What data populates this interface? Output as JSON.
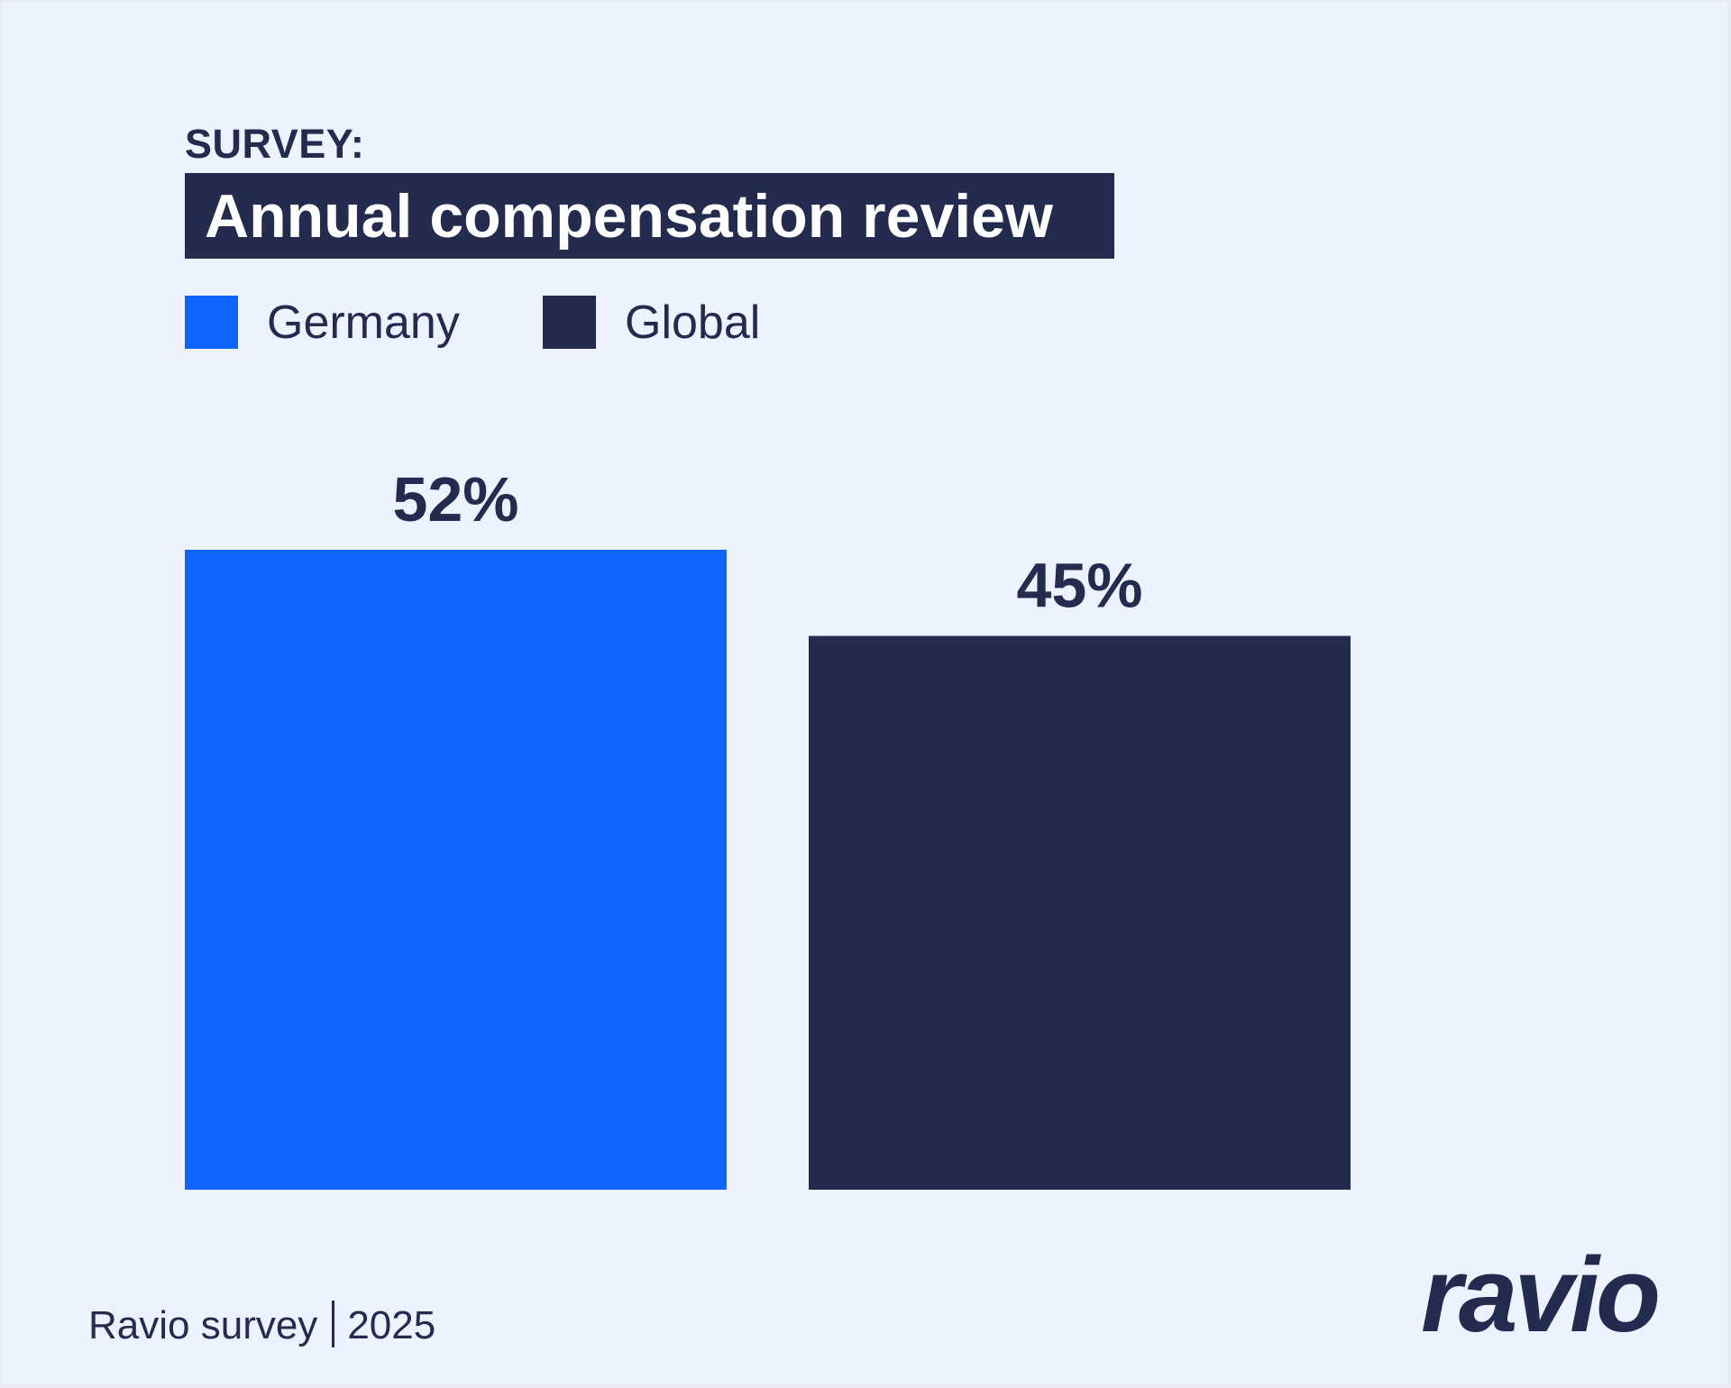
{
  "header": {
    "eyebrow": "SURVEY:",
    "title": "Annual compensation review"
  },
  "legend": [
    {
      "label": "Germany",
      "color": "#0d65fe"
    },
    {
      "label": "Global",
      "color": "#232b4f"
    }
  ],
  "chart_data": {
    "type": "bar",
    "categories": [
      "Germany",
      "Global"
    ],
    "values": [
      52,
      45
    ],
    "value_labels": [
      "52%",
      "45%"
    ],
    "colors": [
      "#0d65fe",
      "#232b4f"
    ],
    "unit": "%",
    "ylim": [
      0,
      52
    ],
    "grid": false,
    "legend_position": "top-left"
  },
  "footer": {
    "source": "Ravio survey",
    "year": "2025",
    "logo_text": "ravio"
  }
}
